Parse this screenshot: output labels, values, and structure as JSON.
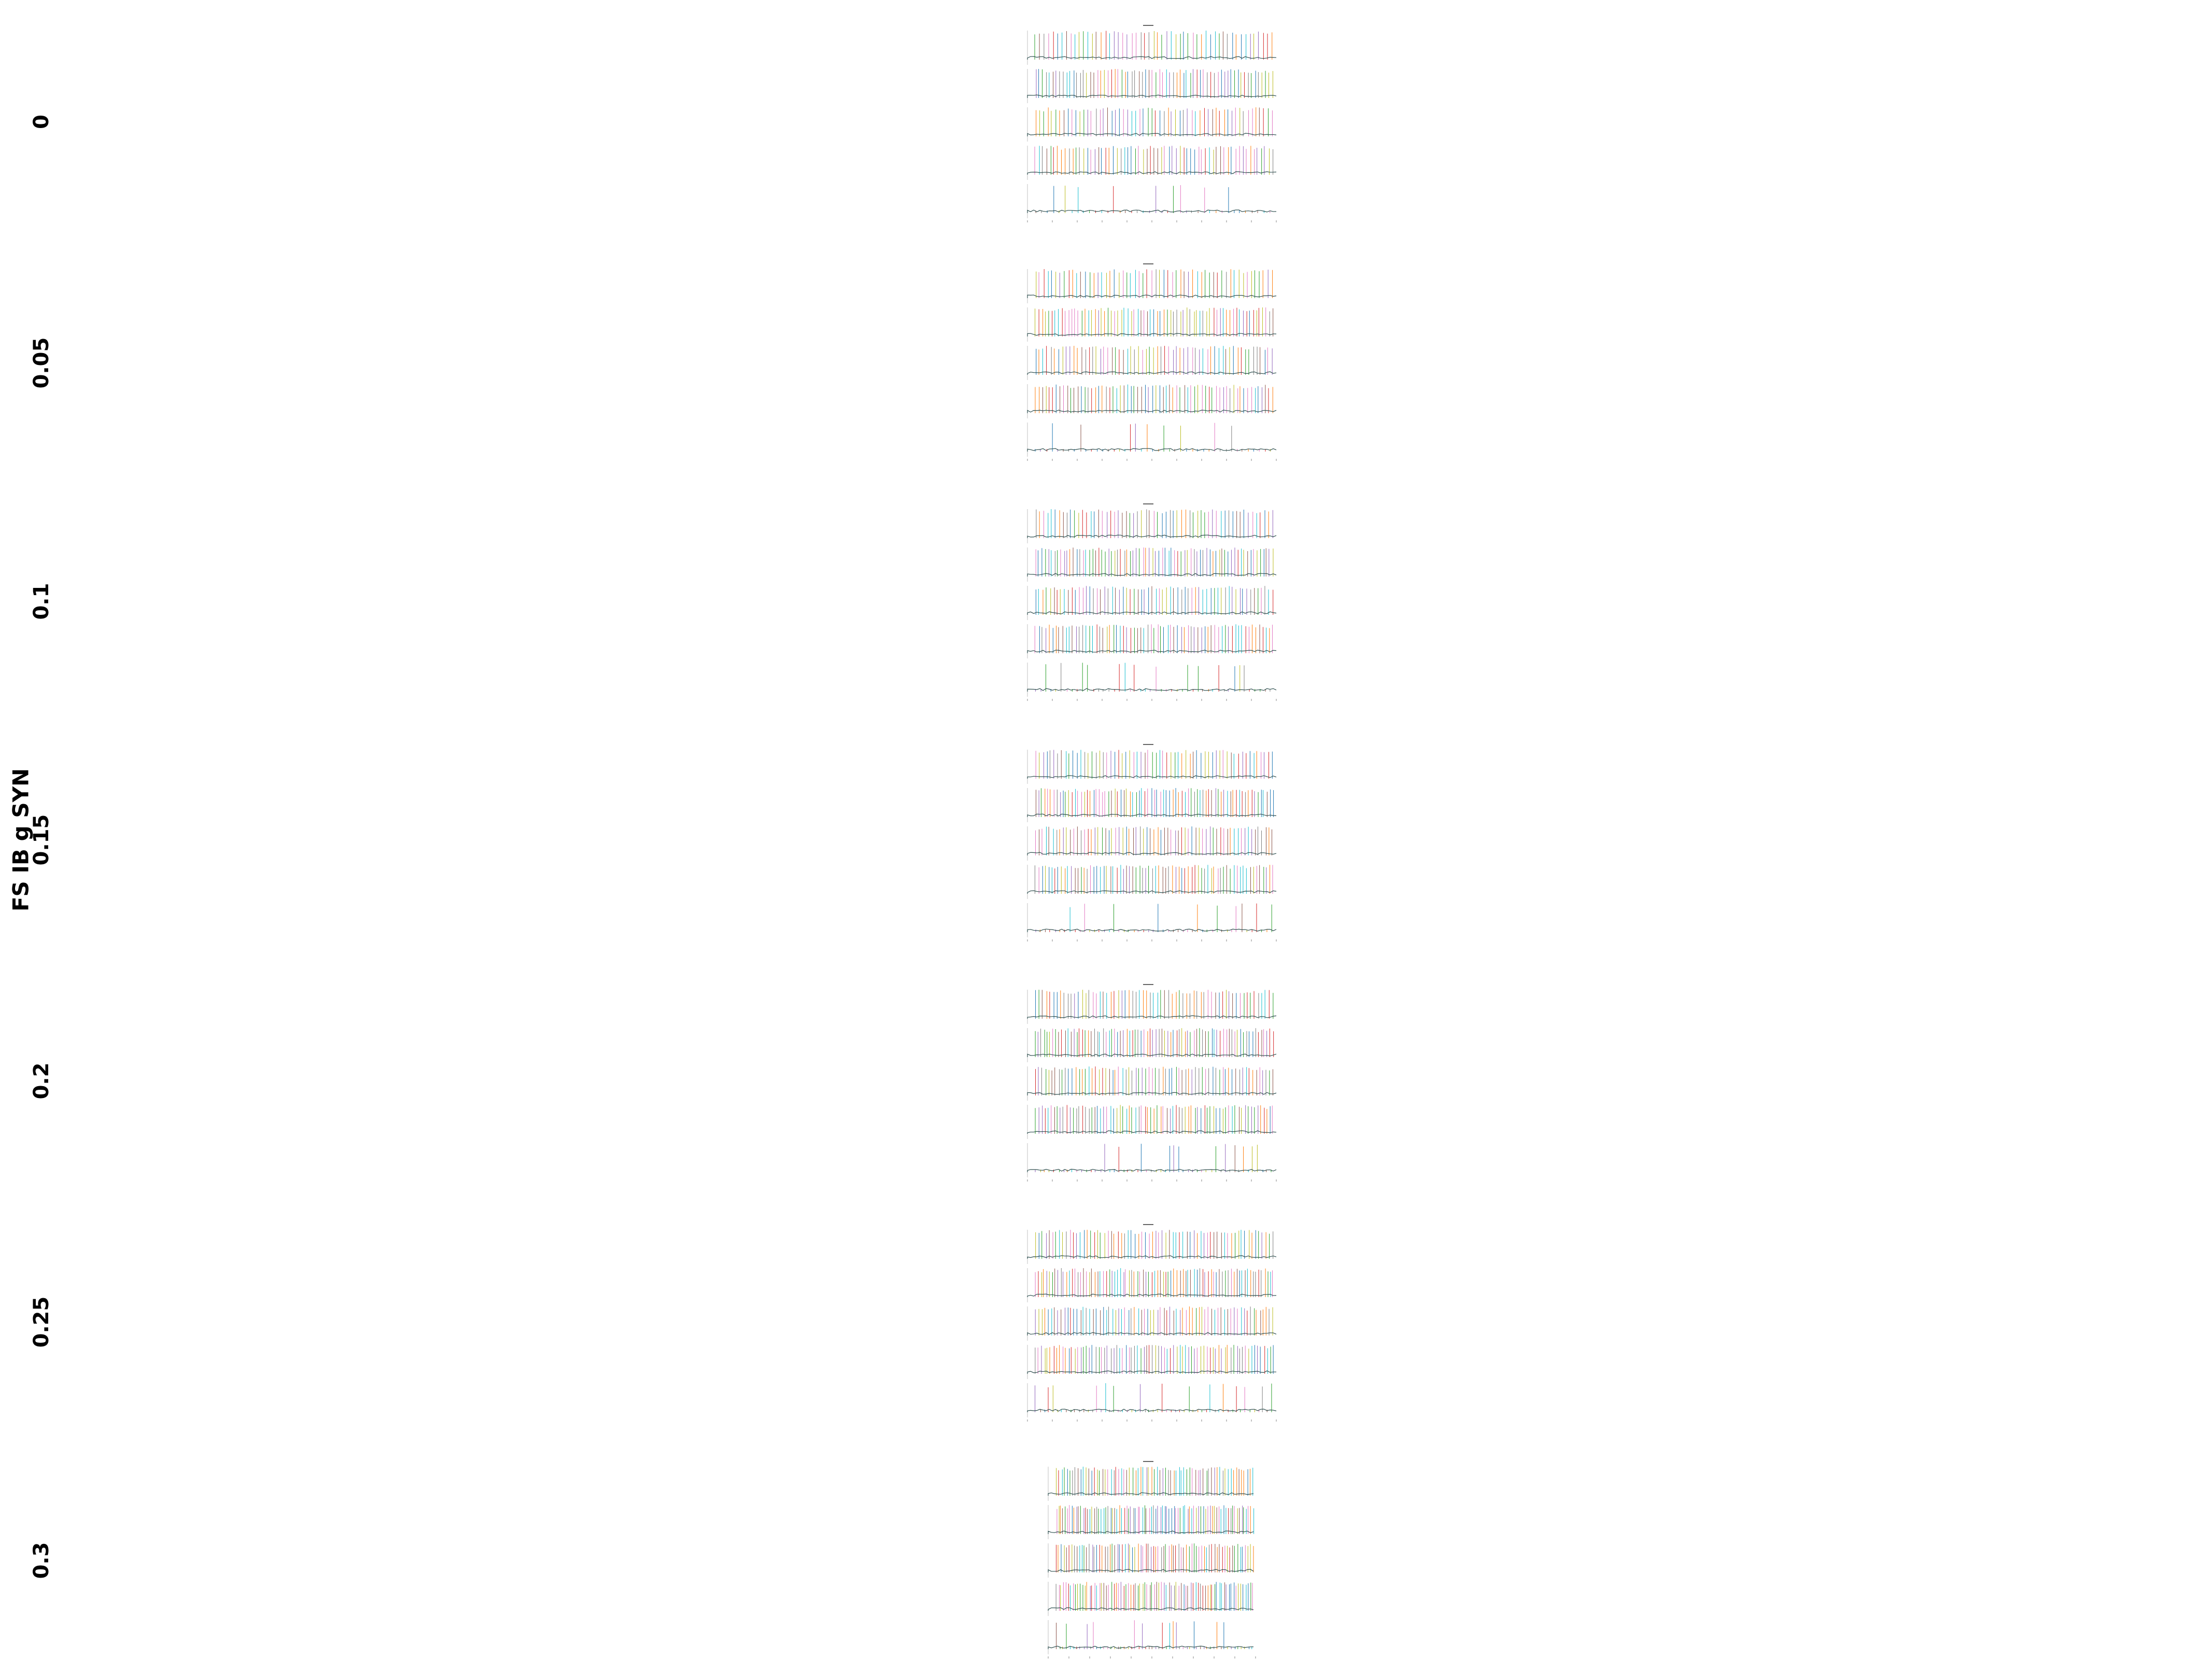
{
  "figure": {
    "ylabel": "FS IB g SYN",
    "rows": [
      "0",
      "0.05",
      "0.1",
      "0.15",
      "0.2",
      "0.25",
      "0.3"
    ]
  },
  "chart_data": {
    "type": "grid",
    "description_of_layout": "7 rows of raster/voltage-trace panels, one per FS IB g SYN value",
    "ylabel": "FS IB g SYN",
    "row_values": [
      0,
      0.05,
      0.1,
      0.15,
      0.2,
      0.25,
      0.3
    ],
    "subplots_per_row": 5,
    "trace_colors": [
      "#1f77b4",
      "#ff7f0e",
      "#2ca02c",
      "#d62728",
      "#9467bd",
      "#8c564b",
      "#e377c2",
      "#7f7f7f",
      "#bcbd22",
      "#17becf"
    ],
    "baseline_color": "#2f4f4f"
  }
}
